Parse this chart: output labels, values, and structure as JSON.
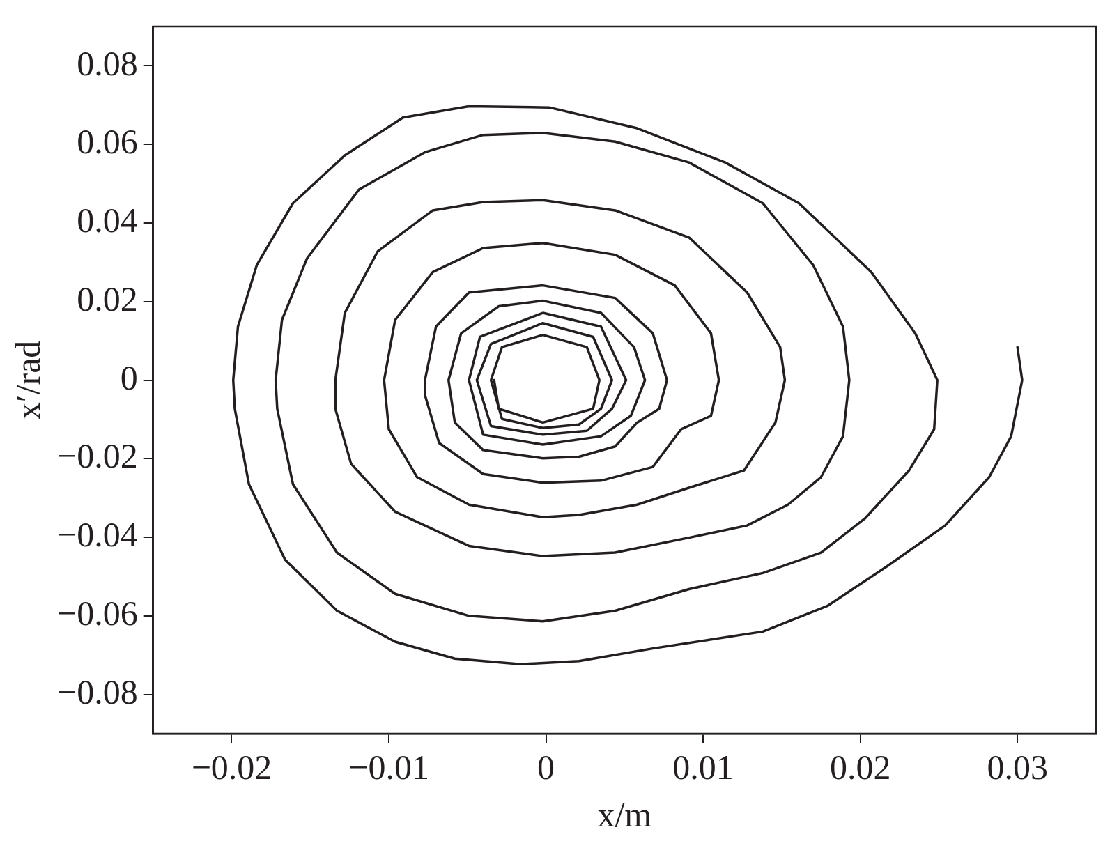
{
  "chart_data": {
    "type": "line",
    "xlabel": "x/m",
    "ylabel": "x′/rad",
    "xlim": [
      -0.025,
      0.035
    ],
    "ylim": [
      -0.09,
      0.09
    ],
    "xticks": [
      {
        "value": -0.02,
        "label": "−0.02"
      },
      {
        "value": -0.01,
        "label": "−0.01"
      },
      0,
      0.01,
      0.02,
      0.03
    ],
    "yticks": [
      {
        "value": -0.08,
        "label": "−0.08"
      },
      {
        "value": -0.06,
        "label": "−0.06"
      },
      {
        "value": -0.04,
        "label": "−0.04"
      },
      {
        "value": -0.02,
        "label": "−0.02"
      },
      0,
      0.02,
      0.04,
      0.06,
      0.08
    ],
    "grid": false,
    "legend": false,
    "marker": "none",
    "line_style": "solid",
    "series": [
      {
        "color": "#231f20",
        "x": [
          0.03,
          0.0303,
          0.0296,
          0.0282,
          0.0254,
          0.0217,
          0.0179,
          0.0138,
          0.0068,
          0.0021,
          -0.0016,
          -0.0058,
          -0.0096,
          -0.0133,
          -0.0166,
          -0.0189,
          -0.0198,
          -0.0199,
          -0.0196,
          -0.0184,
          -0.0161,
          -0.0128,
          -0.0091,
          -0.0049,
          0.0002,
          0.0058,
          0.0114,
          0.0161,
          0.0207,
          0.0235,
          0.0249,
          0.0247,
          0.0231,
          0.0203,
          0.0175,
          0.0138,
          0.0091,
          0.0044,
          -0.0002,
          -0.0049,
          -0.0096,
          -0.0133,
          -0.0161,
          -0.0171,
          -0.0172,
          -0.0168,
          -0.0152,
          -0.0119,
          -0.0077,
          -0.004,
          -0.0002,
          0.0044,
          0.0091,
          0.0138,
          0.017,
          0.0189,
          0.0193,
          0.0189,
          0.0175,
          0.0154,
          0.0128,
          0.0091,
          0.0044,
          -0.0002,
          -0.0049,
          -0.0096,
          -0.0124,
          -0.0134,
          -0.0134,
          -0.0128,
          -0.0107,
          -0.0072,
          -0.004,
          -0.0002,
          0.0044,
          0.0091,
          0.0128,
          0.0149,
          0.0152,
          0.0146,
          0.0126,
          0.0091,
          0.0058,
          0.0021,
          -0.0002,
          -0.0049,
          -0.0082,
          -0.01,
          -0.0103,
          -0.0096,
          -0.0072,
          -0.004,
          -0.0002,
          0.0044,
          0.0082,
          0.0105,
          0.011,
          0.0105,
          0.0086,
          0.0068,
          0.0035,
          -0.0002,
          -0.004,
          -0.0068,
          -0.0077,
          -0.0077,
          -0.007,
          -0.0049,
          -0.0002,
          0.0044,
          0.0068,
          0.0077,
          0.0072,
          0.0058,
          0.0044,
          0.0021,
          -0.0002,
          -0.004,
          -0.0058,
          -0.0062,
          -0.0054,
          -0.003,
          -0.0002,
          0.0035,
          0.0056,
          0.0063,
          0.0054,
          0.0035,
          -0.0002,
          -0.004,
          -0.0049,
          -0.0042,
          -0.0002,
          0.0035,
          0.0051,
          0.0042,
          0.0026,
          -0.0002,
          -0.0035,
          -0.0044,
          -0.0035,
          -0.0002,
          0.003,
          0.0042,
          0.0035,
          0.0021,
          -0.0002,
          -0.0028,
          -0.0035,
          -0.0028,
          -0.0002,
          0.0026,
          0.0034,
          0.003,
          -0.0002,
          -0.003,
          -0.0033
        ],
        "values": [
          0.0084,
          0,
          -0.0143,
          -0.0247,
          -0.037,
          -0.0474,
          -0.0575,
          -0.064,
          -0.0683,
          -0.0715,
          -0.0723,
          -0.0709,
          -0.0666,
          -0.0587,
          -0.0457,
          -0.0265,
          -0.0073,
          0,
          0.0136,
          0.0293,
          0.045,
          0.0572,
          0.0668,
          0.0697,
          0.0694,
          0.0641,
          0.0554,
          0.045,
          0.0275,
          0.0119,
          0,
          -0.0125,
          -0.023,
          -0.0352,
          -0.0439,
          -0.0491,
          -0.0532,
          -0.0587,
          -0.0614,
          -0.06,
          -0.0544,
          -0.0439,
          -0.0265,
          -0.0073,
          0,
          0.0153,
          0.031,
          0.0485,
          0.058,
          0.0624,
          0.0629,
          0.0607,
          0.0554,
          0.045,
          0.0293,
          0.0136,
          0,
          -0.0143,
          -0.0247,
          -0.0317,
          -0.037,
          -0.0401,
          -0.0439,
          -0.0448,
          -0.0422,
          -0.0335,
          -0.0213,
          -0.0073,
          0,
          0.0171,
          0.0328,
          0.0432,
          0.0453,
          0.0458,
          0.0432,
          0.0363,
          0.0223,
          0.0084,
          0,
          -0.0108,
          -0.023,
          -0.0274,
          -0.0317,
          -0.0343,
          -0.0349,
          -0.0317,
          -0.0247,
          -0.0125,
          0,
          0.0153,
          0.0275,
          0.0336,
          0.0349,
          0.0319,
          0.0241,
          0.0119,
          0,
          -0.0091,
          -0.0125,
          -0.0221,
          -0.0256,
          -0.0261,
          -0.0239,
          -0.016,
          -0.0038,
          0,
          0.0136,
          0.0223,
          0.0241,
          0.0209,
          0.0119,
          0,
          -0.0073,
          -0.0108,
          -0.0169,
          -0.0195,
          -0.0199,
          -0.0178,
          -0.0108,
          0,
          0.0119,
          0.0188,
          0.0202,
          0.0171,
          0.0084,
          0,
          -0.0091,
          -0.0143,
          -0.0164,
          -0.0139,
          0,
          0.011,
          0.0171,
          0.0136,
          0,
          -0.0073,
          -0.0129,
          -0.0139,
          -0.0117,
          0,
          0.0092,
          0.0145,
          0.011,
          0,
          -0.0073,
          -0.0113,
          -0.0122,
          -0.0099,
          0,
          0.0084,
          0.0115,
          0.0084,
          0,
          -0.0073,
          -0.0108,
          -0.0073,
          0
        ]
      }
    ]
  }
}
